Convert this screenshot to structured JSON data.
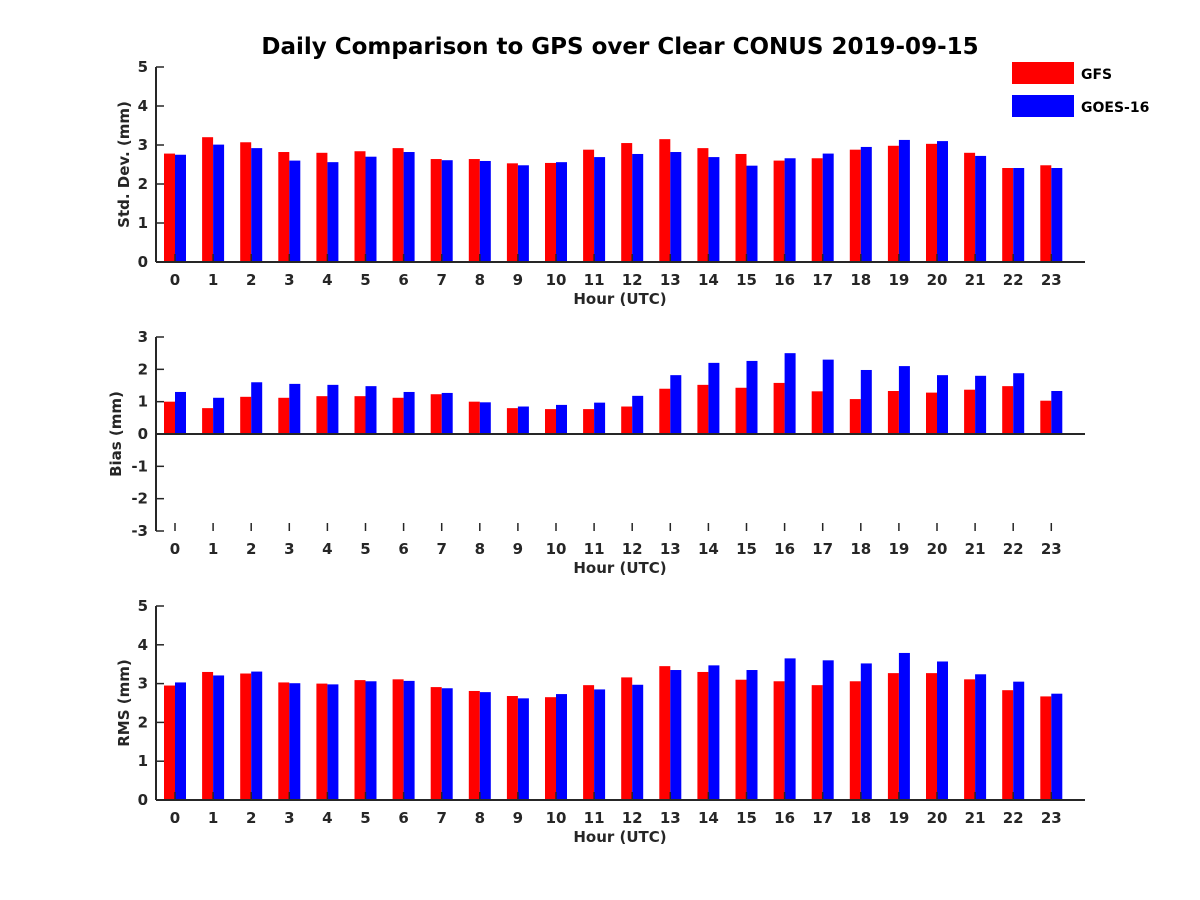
{
  "title": "Daily Comparison to GPS over Clear CONUS 2019-09-15",
  "legend": [
    {
      "name": "GFS",
      "color": "#ff0000"
    },
    {
      "name": "GOES-16",
      "color": "#0000ff"
    }
  ],
  "chart_data": [
    {
      "type": "bar",
      "ylabel": "Std. Dev. (mm)",
      "xlabel": "Hour (UTC)",
      "ylim": [
        0,
        5
      ],
      "yticks": [
        "0",
        "1",
        "2",
        "3",
        "4",
        "5"
      ],
      "categories": [
        "0",
        "1",
        "2",
        "3",
        "4",
        "5",
        "6",
        "7",
        "8",
        "9",
        "10",
        "11",
        "12",
        "13",
        "14",
        "15",
        "16",
        "17",
        "18",
        "19",
        "20",
        "21",
        "22",
        "23"
      ],
      "series": [
        {
          "name": "GFS",
          "color": "#ff0000",
          "values": [
            2.78,
            3.2,
            3.07,
            2.82,
            2.8,
            2.84,
            2.92,
            2.64,
            2.64,
            2.53,
            2.54,
            2.88,
            3.05,
            3.15,
            2.92,
            2.77,
            2.6,
            2.66,
            2.88,
            2.98,
            3.03,
            2.8,
            2.41,
            2.48
          ]
        },
        {
          "name": "GOES-16",
          "color": "#0000ff",
          "values": [
            2.75,
            3.01,
            2.92,
            2.6,
            2.56,
            2.7,
            2.82,
            2.61,
            2.59,
            2.48,
            2.56,
            2.69,
            2.77,
            2.82,
            2.69,
            2.47,
            2.66,
            2.78,
            2.95,
            3.13,
            3.1,
            2.72,
            2.41,
            2.41
          ]
        }
      ]
    },
    {
      "type": "bar",
      "ylabel": "Bias (mm)",
      "xlabel": "Hour (UTC)",
      "ylim": [
        -3,
        3
      ],
      "yticks": [
        "-3",
        "-2",
        "-1",
        "0",
        "1",
        "2",
        "3"
      ],
      "categories": [
        "0",
        "1",
        "2",
        "3",
        "4",
        "5",
        "6",
        "7",
        "8",
        "9",
        "10",
        "11",
        "12",
        "13",
        "14",
        "15",
        "16",
        "17",
        "18",
        "19",
        "20",
        "21",
        "22",
        "23"
      ],
      "series": [
        {
          "name": "GFS",
          "color": "#ff0000",
          "values": [
            1.0,
            0.8,
            1.15,
            1.12,
            1.17,
            1.17,
            1.12,
            1.23,
            1.0,
            0.8,
            0.77,
            0.77,
            0.85,
            1.4,
            1.52,
            1.43,
            1.58,
            1.32,
            1.08,
            1.33,
            1.28,
            1.37,
            1.48,
            1.03
          ]
        },
        {
          "name": "GOES-16",
          "color": "#0000ff",
          "values": [
            1.3,
            1.12,
            1.6,
            1.55,
            1.52,
            1.48,
            1.3,
            1.27,
            0.98,
            0.85,
            0.9,
            0.97,
            1.18,
            1.82,
            2.2,
            2.26,
            2.5,
            2.3,
            1.98,
            2.1,
            1.82,
            1.8,
            1.88,
            1.33
          ]
        }
      ]
    },
    {
      "type": "bar",
      "ylabel": "RMS (mm)",
      "xlabel": "Hour (UTC)",
      "ylim": [
        0,
        5
      ],
      "yticks": [
        "0",
        "1",
        "2",
        "3",
        "4",
        "5"
      ],
      "categories": [
        "0",
        "1",
        "2",
        "3",
        "4",
        "5",
        "6",
        "7",
        "8",
        "9",
        "10",
        "11",
        "12",
        "13",
        "14",
        "15",
        "16",
        "17",
        "18",
        "19",
        "20",
        "21",
        "22",
        "23"
      ],
      "series": [
        {
          "name": "GFS",
          "color": "#ff0000",
          "values": [
            2.95,
            3.3,
            3.26,
            3.03,
            3.0,
            3.09,
            3.11,
            2.91,
            2.81,
            2.68,
            2.65,
            2.96,
            3.16,
            3.45,
            3.3,
            3.1,
            3.06,
            2.96,
            3.06,
            3.27,
            3.27,
            3.11,
            2.83,
            2.67
          ]
        },
        {
          "name": "GOES-16",
          "color": "#0000ff",
          "values": [
            3.03,
            3.21,
            3.31,
            3.01,
            2.98,
            3.06,
            3.07,
            2.88,
            2.78,
            2.62,
            2.73,
            2.85,
            2.97,
            3.35,
            3.47,
            3.35,
            3.65,
            3.6,
            3.52,
            3.79,
            3.57,
            3.24,
            3.05,
            2.74
          ]
        }
      ]
    }
  ]
}
